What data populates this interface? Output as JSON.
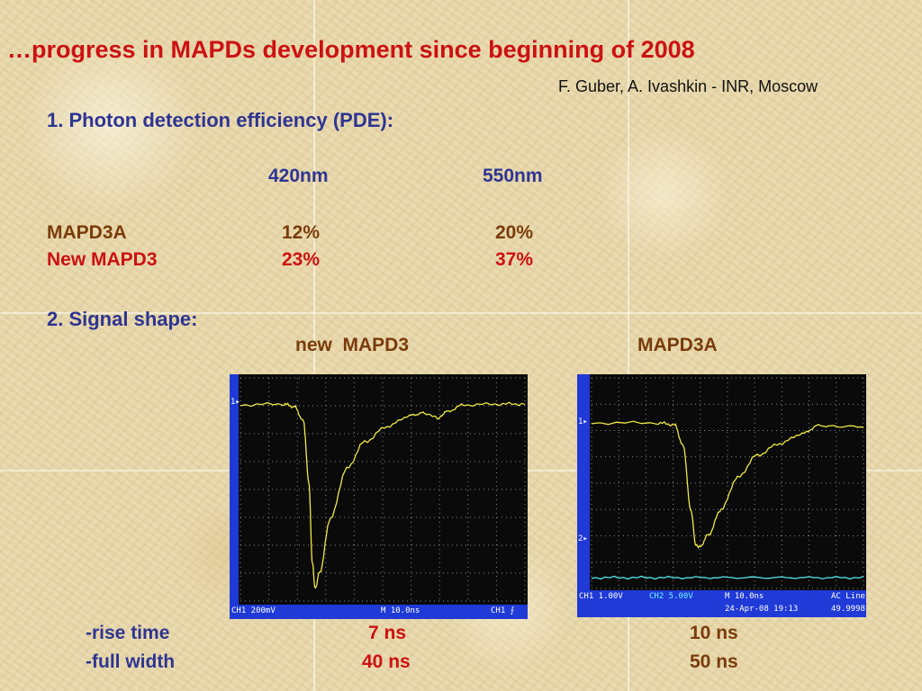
{
  "slide": {
    "title": "…progress in MAPDs development since beginning of 2008",
    "authors": "F. Guber, A. Ivashkin - INR, Moscow",
    "section1_heading": "1.  Photon detection efficiency (PDE):",
    "pde_table": {
      "headers": [
        "420nm",
        "550nm"
      ],
      "rows": [
        {
          "label": "MAPD3A",
          "values": [
            "12%",
            "20%"
          ],
          "color": "#7a3b0a"
        },
        {
          "label": "New MAPD3",
          "values": [
            "23%",
            "37%"
          ],
          "color": "#cc1111"
        }
      ]
    },
    "section2_heading": "2. Signal shape:",
    "scopes": [
      {
        "label": "new  MAPD3",
        "status": {
          "ch1": "CH1  200mV",
          "timebase": "M 10.0ns",
          "trigger": "CH1 ⨍"
        }
      },
      {
        "label": "MAPD3A",
        "status": {
          "ch1": "CH1  1.00V",
          "ch2": "CH2  5.00V",
          "timebase": "M 10.0ns",
          "line": "AC Line",
          "date": "24-Apr-08 19:13",
          "freq": "49.9998"
        }
      }
    ],
    "timing": {
      "rows": [
        {
          "label": "-rise time",
          "values": [
            "7 ns",
            "10 ns"
          ]
        },
        {
          "label": "-full width",
          "values": [
            "40 ns",
            "50 ns"
          ]
        }
      ]
    }
  },
  "colors": {
    "title": "#cc1111",
    "heading": "#2e3592",
    "values": "#7a3b0a",
    "trace": "#f0e845",
    "scope_frame": "#1f3ad6"
  }
}
